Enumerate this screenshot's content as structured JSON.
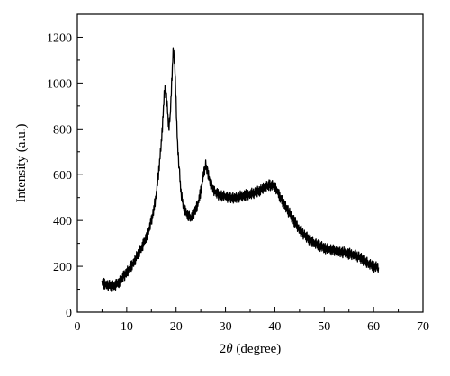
{
  "chart_data": {
    "type": "line",
    "xlabel_prefix": "2",
    "xlabel_symbol": "θ",
    "xlabel_suffix": " (degree)",
    "ylabel": "Intensity (a.u.)",
    "xlim": [
      0,
      70
    ],
    "ylim": [
      0,
      1300
    ],
    "xticks": [
      0,
      10,
      20,
      30,
      40,
      50,
      60,
      70
    ],
    "yticks": [
      0,
      200,
      400,
      600,
      800,
      1000,
      1200
    ],
    "grid": false,
    "series": [
      {
        "color": "#000000",
        "x": [
          5,
          5.5,
          6,
          6.5,
          7,
          7.5,
          8,
          8.5,
          9,
          9.5,
          10,
          10.5,
          11,
          11.5,
          12,
          12.5,
          13,
          13.5,
          14,
          14.5,
          15,
          15.5,
          16,
          16.5,
          17,
          17.3,
          17.6,
          17.9,
          18.2,
          18.5,
          18.8,
          19.1,
          19.4,
          19.7,
          20,
          20.3,
          20.7,
          21,
          21.5,
          22,
          22.5,
          23,
          23.5,
          24,
          24.5,
          25,
          25.5,
          26,
          26.4,
          26.8,
          27.2,
          27.6,
          28,
          28.5,
          29,
          30,
          31,
          32,
          33,
          34,
          35,
          36,
          37,
          38,
          39,
          40,
          40.5,
          41,
          42,
          43,
          44,
          45,
          46,
          47,
          48,
          49,
          50,
          51,
          52,
          53,
          54,
          55,
          56,
          57,
          58,
          59,
          60,
          61
        ],
        "y": [
          130,
          125,
          120,
          115,
          112,
          115,
          120,
          130,
          145,
          160,
          175,
          190,
          205,
          220,
          240,
          260,
          280,
          300,
          330,
          360,
          400,
          450,
          520,
          620,
          740,
          830,
          950,
          980,
          900,
          800,
          850,
          1000,
          1140,
          1100,
          920,
          730,
          600,
          520,
          460,
          430,
          420,
          410,
          430,
          450,
          480,
          530,
          600,
          640,
          610,
          570,
          550,
          530,
          520,
          515,
          510,
          505,
          500,
          500,
          505,
          510,
          515,
          520,
          530,
          545,
          555,
          550,
          530,
          505,
          470,
          430,
          395,
          360,
          335,
          315,
          300,
          290,
          280,
          275,
          270,
          265,
          260,
          255,
          250,
          240,
          225,
          210,
          200,
          195
        ]
      }
    ]
  }
}
